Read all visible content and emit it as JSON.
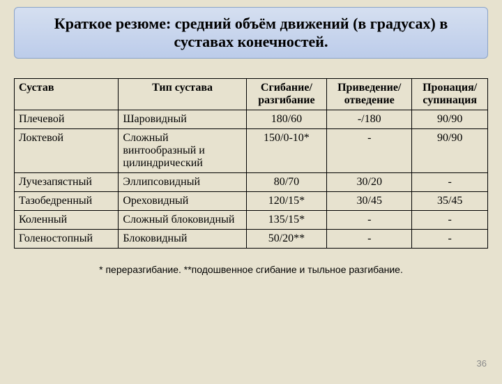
{
  "title": "Краткое резюме: средний объём движений (в градусах) в суставах конечностей.",
  "headers": {
    "c1": "Сустав",
    "c2": "Тип сустава",
    "c3": "Сгибание/ разгибание",
    "c4": "Приведение/ отведение",
    "c5": "Пронация/ супинация"
  },
  "rows": [
    {
      "joint": "Плечевой",
      "type": "Шаровидный",
      "flex": "180/60",
      "adduct": "-/180",
      "pron": "90/90"
    },
    {
      "joint": "Локтевой",
      "type": "Сложный винтообразный и цилиндрический",
      "flex": "150/0-10*",
      "adduct": "-",
      "pron": "90/90"
    },
    {
      "joint": "Лучезапястный",
      "type": "Эллипсовидный",
      "flex": "80/70",
      "adduct": "30/20",
      "pron": "-"
    },
    {
      "joint": "Тазобедренный",
      "type": "Ореховидный",
      "flex": "120/15*",
      "adduct": "30/45",
      "pron": "35/45"
    },
    {
      "joint": "Коленный",
      "type": "Сложный блоковидный",
      "flex": "135/15*",
      "adduct": "-",
      "pron": "-"
    },
    {
      "joint": "Голеностопный",
      "type": "Блоковидный",
      "flex": "50/20**",
      "adduct": "-",
      "pron": "-"
    }
  ],
  "footnote": "* переразгибание. **подошвенное сгибание и тыльное разгибание.",
  "page_number": "36",
  "style": {
    "background_color": "#e7e2cf",
    "title_gradient_top": "#d5dff0",
    "title_gradient_bottom": "#bcccea",
    "title_border_color": "#8aa3c8",
    "title_fontsize_pt": 16,
    "body_font": "Times New Roman",
    "table_border_color": "#000000",
    "footnote_font": "Arial",
    "pagenum_color": "#8b8b8b"
  }
}
